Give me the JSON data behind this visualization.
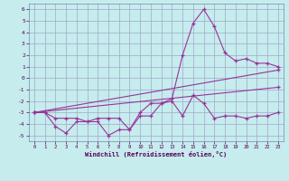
{
  "xlabel": "Windchill (Refroidissement éolien,°C)",
  "bg_color": "#c6ecee",
  "line_color": "#993399",
  "grid_color": "#a0a8c8",
  "xlim": [
    -0.5,
    23.5
  ],
  "ylim": [
    -5.5,
    6.5
  ],
  "yticks": [
    -5,
    -4,
    -3,
    -2,
    -1,
    0,
    1,
    2,
    3,
    4,
    5,
    6
  ],
  "xticks": [
    0,
    1,
    2,
    3,
    4,
    5,
    6,
    7,
    8,
    9,
    10,
    11,
    12,
    13,
    14,
    15,
    16,
    17,
    18,
    19,
    20,
    21,
    22,
    23
  ],
  "lines": [
    {
      "x": [
        0,
        1,
        2,
        3,
        4,
        5,
        6,
        7,
        8,
        9,
        10,
        11,
        12,
        13,
        14,
        15,
        16,
        17,
        18,
        19,
        20,
        21,
        22,
        23
      ],
      "y": [
        -3,
        -3,
        -4.2,
        -4.8,
        -3.8,
        -3.8,
        -3.8,
        -5.0,
        -4.5,
        -4.5,
        -3.3,
        -3.3,
        -2.2,
        -2.0,
        -3.3,
        -1.5,
        -2.2,
        -3.5,
        -3.3,
        -3.3,
        -3.5,
        -3.3,
        -3.3,
        -3.0
      ]
    },
    {
      "x": [
        0,
        1,
        2,
        3,
        4,
        5,
        6,
        7,
        8,
        9,
        10,
        11,
        12,
        13,
        14,
        15,
        16,
        17,
        18,
        19,
        20,
        21,
        22,
        23
      ],
      "y": [
        -3,
        -3,
        -3.5,
        -3.5,
        -3.5,
        -3.8,
        -3.5,
        -3.5,
        -3.5,
        -4.5,
        -3.0,
        -2.2,
        -2.2,
        -1.8,
        2.0,
        4.8,
        6.0,
        4.5,
        2.2,
        1.5,
        1.7,
        1.3,
        1.3,
        1.0
      ]
    },
    {
      "x": [
        0,
        23
      ],
      "y": [
        -3.0,
        0.7
      ]
    },
    {
      "x": [
        0,
        23
      ],
      "y": [
        -3.0,
        -0.8
      ]
    }
  ]
}
